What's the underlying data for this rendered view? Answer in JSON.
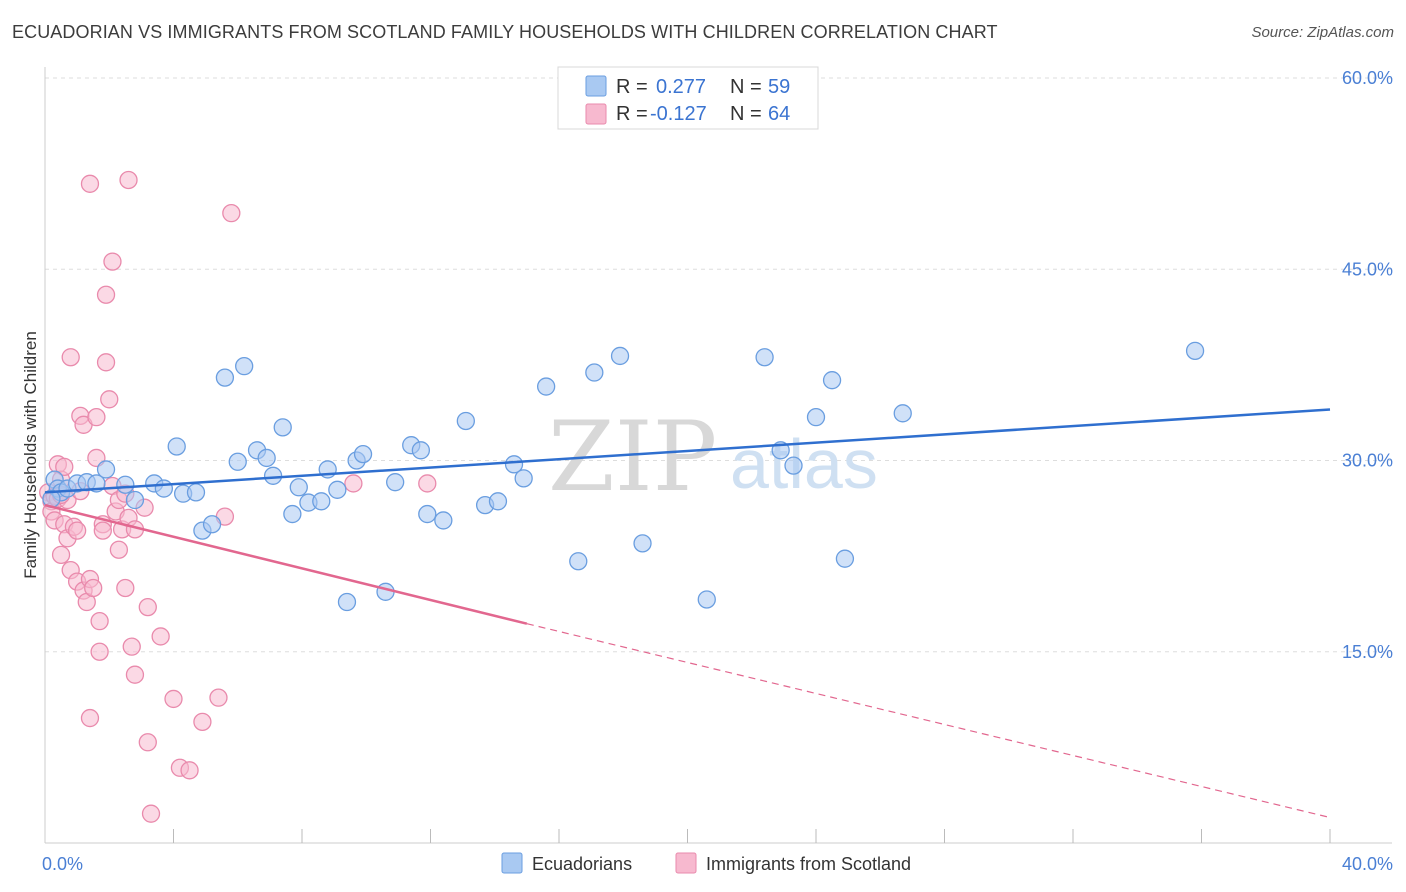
{
  "title": "ECUADORIAN VS IMMIGRANTS FROM SCOTLAND FAMILY HOUSEHOLDS WITH CHILDREN CORRELATION CHART",
  "source": "Source: ZipAtlas.com",
  "watermark": {
    "zip": "ZIP",
    "atlas": "atlas"
  },
  "legend_top": [
    {
      "r_label": "R =",
      "r_value": "0.277",
      "n_label": "N =",
      "n_value": "59"
    },
    {
      "r_label": "R =",
      "r_value": "-0.127",
      "n_label": "N =",
      "n_value": "64"
    }
  ],
  "legend_bottom": [
    "Ecuadorians",
    "Immigrants from Scotland"
  ],
  "colors": {
    "blue_fill": "#a9c9f2",
    "blue_stroke": "#6a9ee0",
    "blue_line": "#2f6fcf",
    "pink_fill": "#f7b9cf",
    "pink_stroke": "#e98aac",
    "pink_line": "#e2678f",
    "tick": "#4a7fd4",
    "grid": "#dddddd"
  },
  "chart_data": {
    "type": "scatter",
    "title": "ECUADORIAN VS IMMIGRANTS FROM SCOTLAND FAMILY HOUSEHOLDS WITH CHILDREN CORRELATION CHART",
    "xlabel": "",
    "ylabel": "Family Households with Children",
    "xlim": [
      0,
      40
    ],
    "ylim": [
      0,
      60
    ],
    "x_tick_labels": [
      "0.0%",
      "40.0%"
    ],
    "y_ticks": [
      15,
      30,
      45,
      60
    ],
    "y_tick_labels": [
      "15.0%",
      "30.0%",
      "45.0%",
      "60.0%"
    ],
    "series": [
      {
        "name": "Ecuadorians",
        "r": 0.277,
        "n": 59,
        "trend": {
          "x0": 0,
          "y0": 27.5,
          "x1": 40,
          "y1": 34
        },
        "points": [
          [
            0.3,
            28.5
          ],
          [
            0.4,
            27.8
          ],
          [
            0.5,
            27.5
          ],
          [
            0.7,
            27.8
          ],
          [
            1.0,
            28.2
          ],
          [
            1.3,
            28.3
          ],
          [
            1.6,
            28.2
          ],
          [
            1.9,
            29.3
          ],
          [
            2.5,
            28.1
          ],
          [
            2.8,
            26.9
          ],
          [
            3.4,
            28.2
          ],
          [
            3.7,
            27.8
          ],
          [
            4.1,
            31.1
          ],
          [
            4.3,
            27.4
          ],
          [
            4.7,
            27.5
          ],
          [
            4.9,
            24.5
          ],
          [
            5.2,
            25.0
          ],
          [
            5.6,
            36.5
          ],
          [
            6.0,
            29.9
          ],
          [
            6.2,
            37.4
          ],
          [
            6.6,
            30.8
          ],
          [
            6.9,
            30.2
          ],
          [
            7.1,
            28.8
          ],
          [
            7.4,
            32.6
          ],
          [
            7.7,
            25.8
          ],
          [
            7.9,
            27.9
          ],
          [
            8.2,
            26.7
          ],
          [
            8.6,
            26.8
          ],
          [
            8.8,
            29.3
          ],
          [
            9.1,
            27.7
          ],
          [
            9.4,
            18.9
          ],
          [
            9.7,
            30.0
          ],
          [
            9.9,
            30.5
          ],
          [
            10.6,
            19.7
          ],
          [
            10.9,
            28.3
          ],
          [
            11.4,
            31.2
          ],
          [
            11.7,
            30.8
          ],
          [
            11.9,
            25.8
          ],
          [
            12.4,
            25.3
          ],
          [
            13.1,
            33.1
          ],
          [
            13.7,
            26.5
          ],
          [
            14.1,
            26.8
          ],
          [
            14.6,
            29.7
          ],
          [
            14.9,
            28.6
          ],
          [
            15.6,
            35.8
          ],
          [
            16.6,
            22.1
          ],
          [
            17.1,
            36.9
          ],
          [
            17.9,
            38.2
          ],
          [
            18.6,
            23.5
          ],
          [
            20.6,
            19.1
          ],
          [
            22.4,
            38.1
          ],
          [
            22.9,
            30.8
          ],
          [
            23.3,
            29.6
          ],
          [
            24.0,
            33.4
          ],
          [
            24.5,
            36.3
          ],
          [
            24.9,
            22.3
          ],
          [
            26.7,
            33.7
          ],
          [
            35.8,
            38.6
          ],
          [
            0.2,
            27.0
          ]
        ]
      },
      {
        "name": "Immigrants from Scotland",
        "r": -0.127,
        "n": 64,
        "trend": {
          "x0": 0,
          "y0": 26.5,
          "x1": 15,
          "y1": 17.2,
          "dash_x1": 40,
          "dash_y1": 2.0
        },
        "points": [
          [
            0.1,
            27.5
          ],
          [
            0.2,
            26.8
          ],
          [
            0.2,
            26.0
          ],
          [
            0.3,
            27.2
          ],
          [
            0.3,
            25.3
          ],
          [
            0.4,
            27.0
          ],
          [
            0.4,
            29.7
          ],
          [
            0.5,
            22.6
          ],
          [
            0.5,
            28.5
          ],
          [
            0.6,
            25.0
          ],
          [
            0.6,
            29.5
          ],
          [
            0.7,
            23.9
          ],
          [
            0.7,
            26.9
          ],
          [
            0.8,
            21.4
          ],
          [
            0.8,
            38.1
          ],
          [
            0.9,
            24.8
          ],
          [
            1.0,
            24.5
          ],
          [
            1.0,
            20.5
          ],
          [
            1.1,
            33.5
          ],
          [
            1.1,
            27.6
          ],
          [
            1.2,
            19.8
          ],
          [
            1.2,
            32.8
          ],
          [
            1.3,
            18.9
          ],
          [
            1.4,
            20.7
          ],
          [
            1.4,
            9.8
          ],
          [
            1.4,
            51.7
          ],
          [
            1.5,
            20.0
          ],
          [
            1.6,
            33.4
          ],
          [
            1.6,
            30.2
          ],
          [
            1.7,
            17.4
          ],
          [
            1.7,
            15.0
          ],
          [
            1.8,
            25.0
          ],
          [
            1.8,
            24.5
          ],
          [
            1.9,
            37.7
          ],
          [
            1.9,
            43.0
          ],
          [
            2.0,
            34.8
          ],
          [
            2.1,
            45.6
          ],
          [
            2.1,
            28.0
          ],
          [
            2.2,
            26.0
          ],
          [
            2.3,
            26.9
          ],
          [
            2.3,
            23.0
          ],
          [
            2.4,
            24.6
          ],
          [
            2.5,
            20.0
          ],
          [
            2.5,
            27.4
          ],
          [
            2.6,
            52.0
          ],
          [
            2.6,
            25.5
          ],
          [
            2.7,
            15.4
          ],
          [
            2.8,
            13.2
          ],
          [
            2.8,
            24.6
          ],
          [
            3.1,
            26.3
          ],
          [
            3.2,
            18.5
          ],
          [
            3.2,
            7.9
          ],
          [
            3.3,
            2.3
          ],
          [
            3.6,
            16.2
          ],
          [
            4.0,
            11.3
          ],
          [
            4.2,
            5.9
          ],
          [
            4.5,
            5.7
          ],
          [
            4.9,
            9.5
          ],
          [
            5.4,
            11.4
          ],
          [
            5.6,
            25.6
          ],
          [
            5.8,
            49.4
          ],
          [
            9.6,
            28.2
          ],
          [
            11.9,
            28.2
          ],
          [
            0.5,
            27.3
          ]
        ]
      }
    ]
  }
}
